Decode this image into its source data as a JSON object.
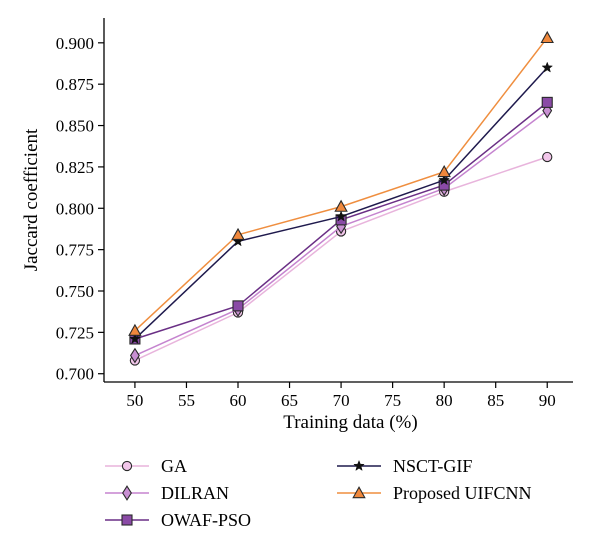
{
  "chart_data": {
    "type": "line",
    "x": [
      50,
      60,
      70,
      80,
      90
    ],
    "xlabel": "Training data (%)",
    "ylabel": "Jaccard coefficient",
    "xlim": [
      47,
      92.5
    ],
    "ylim": [
      0.695,
      0.915
    ],
    "xticks": [
      "50",
      "55",
      "60",
      "65",
      "70",
      "75",
      "80",
      "85",
      "90"
    ],
    "yticks": [
      "0.700",
      "0.725",
      "0.750",
      "0.775",
      "0.800",
      "0.825",
      "0.850",
      "0.875",
      "0.900"
    ],
    "grid": false,
    "legend_position": "bottom",
    "series": [
      {
        "name": "GA",
        "values": [
          0.708,
          0.737,
          0.786,
          0.81,
          0.831
        ],
        "color": "#e8b4dc",
        "marker_fill": "#f2c6ea",
        "marker": "circle"
      },
      {
        "name": "DILRAN",
        "values": [
          0.711,
          0.739,
          0.789,
          0.812,
          0.859
        ],
        "color": "#c584cf",
        "marker_fill": "#c88fd2",
        "marker": "diamond"
      },
      {
        "name": "OWAF-PSO",
        "values": [
          0.721,
          0.741,
          0.793,
          0.814,
          0.864
        ],
        "color": "#6a2f85",
        "marker_fill": "#8a4aa6",
        "marker": "square"
      },
      {
        "name": "NSCT-GIF",
        "values": [
          0.721,
          0.78,
          0.795,
          0.817,
          0.885
        ],
        "color": "#1f1a4d",
        "marker_fill": "#111111",
        "marker": "star"
      },
      {
        "name": "Proposed UIFCNN",
        "values": [
          0.726,
          0.784,
          0.801,
          0.822,
          0.903
        ],
        "color": "#ef8e3f",
        "marker_fill": "#f0883c",
        "marker": "triangle"
      }
    ]
  }
}
